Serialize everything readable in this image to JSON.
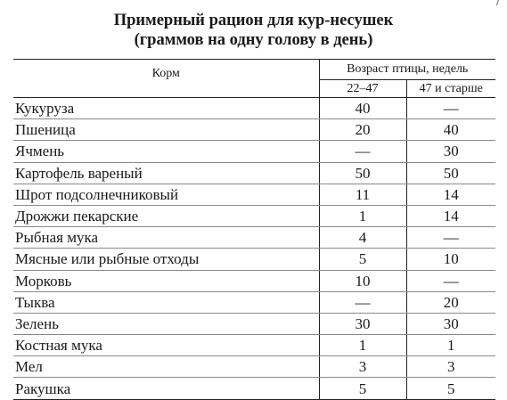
{
  "document": {
    "title_line1": "Примерный рацион для кур-несушек",
    "title_line2": "(граммов на одну голову в день)",
    "corner_mark": "/"
  },
  "table": {
    "header_feed": "Корм",
    "header_age": "Возраст птицы, недель",
    "header_age_a": "22–47",
    "header_age_b": "47 и старше",
    "rows": [
      {
        "feed": "Кукуруза",
        "a": "40",
        "b": "—"
      },
      {
        "feed": "Пшеница",
        "a": "20",
        "b": "40"
      },
      {
        "feed": "Ячмень",
        "a": "—",
        "b": "30"
      },
      {
        "feed": "Картофель вареный",
        "a": "50",
        "b": "50"
      },
      {
        "feed": "Шрот подсолнечниковый",
        "a": "11",
        "b": "14"
      },
      {
        "feed": "Дрожжи пекарские",
        "a": "1",
        "b": "14"
      },
      {
        "feed": "Рыбная мука",
        "a": "4",
        "b": "—"
      },
      {
        "feed": "Мясные или рыбные отходы",
        "a": "5",
        "b": "10"
      },
      {
        "feed": "Морковь",
        "a": "10",
        "b": "—"
      },
      {
        "feed": "Тыква",
        "a": "—",
        "b": "20"
      },
      {
        "feed": "Зелень",
        "a": "30",
        "b": "30"
      },
      {
        "feed": "Костная мука",
        "a": "1",
        "b": "1"
      },
      {
        "feed": "Мел",
        "a": "3",
        "b": "3"
      },
      {
        "feed": "Ракушка",
        "a": "5",
        "b": "5"
      }
    ]
  }
}
